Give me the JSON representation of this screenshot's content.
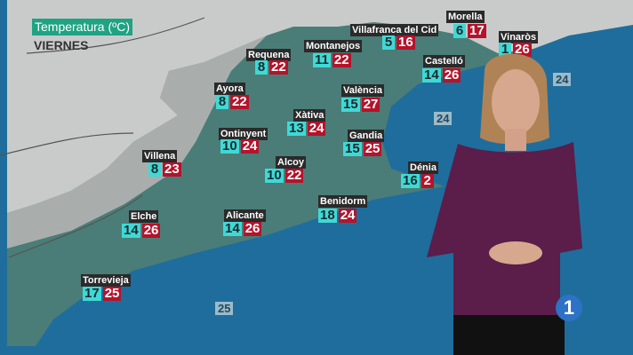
{
  "header": {
    "title": "Temperatura (ºC)",
    "day": "VIERNES"
  },
  "colors": {
    "min_box": "#3fd9d6",
    "max_box": "#b5132b",
    "title_badge": "#1fa383",
    "sea": "#1f6d9c"
  },
  "cities": [
    {
      "name": "Villafranca del Cid",
      "min": "5",
      "max": "16"
    },
    {
      "name": "Morella",
      "min": "6",
      "max": "17"
    },
    {
      "name": "Vinaròs",
      "min": "1",
      "max": "26"
    },
    {
      "name": "Requena",
      "min": "8",
      "max": "22"
    },
    {
      "name": "Montanejos",
      "min": "11",
      "max": "22"
    },
    {
      "name": "Castelló",
      "min": "14",
      "max": "26"
    },
    {
      "name": "Ayora",
      "min": "8",
      "max": "22"
    },
    {
      "name": "València",
      "min": "15",
      "max": "27"
    },
    {
      "name": "Xàtiva",
      "min": "13",
      "max": "24"
    },
    {
      "name": "Ontinyent",
      "min": "10",
      "max": "24"
    },
    {
      "name": "Gandia",
      "min": "15",
      "max": "25"
    },
    {
      "name": "Villena",
      "min": "8",
      "max": "23"
    },
    {
      "name": "Alcoy",
      "min": "10",
      "max": "22"
    },
    {
      "name": "Dénia",
      "min": "16",
      "max": "2"
    },
    {
      "name": "Benidorm",
      "min": "18",
      "max": "24"
    },
    {
      "name": "Elche",
      "min": "14",
      "max": "26"
    },
    {
      "name": "Alicante",
      "min": "14",
      "max": "26"
    },
    {
      "name": "Torrevieja",
      "min": "17",
      "max": "25"
    }
  ],
  "sea_temps": [
    "24",
    "24",
    "25"
  ],
  "logo": {
    "channel": "1",
    "icon": "la1-logo"
  }
}
